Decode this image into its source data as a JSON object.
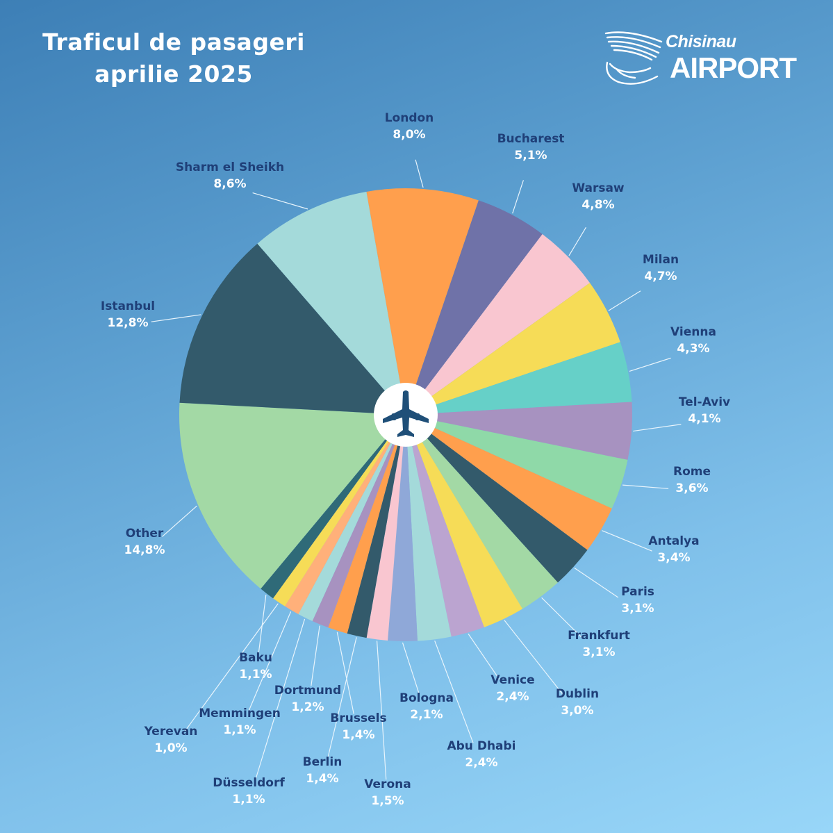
{
  "header": {
    "title_line1": "Traficul de pasageri",
    "title_line2": "aprilie 2025"
  },
  "logo": {
    "city": "Chisinau",
    "brand": "AIRPORT"
  },
  "center_icon": "airplane-icon",
  "chart_data": {
    "type": "pie",
    "title": "Traficul de pasageri aprilie 2025",
    "start_angle_deg": -10,
    "direction": "clockwise",
    "slices": [
      {
        "name": "London",
        "value": 8.0,
        "label": "8,0%",
        "color": "#ff9f4d"
      },
      {
        "name": "Bucharest",
        "value": 5.1,
        "label": "5,1%",
        "color": "#6f72a8"
      },
      {
        "name": "Warsaw",
        "value": 4.8,
        "label": "4,8%",
        "color": "#f9c6d0"
      },
      {
        "name": "Milan",
        "value": 4.7,
        "label": "4,7%",
        "color": "#f6dc57"
      },
      {
        "name": "Vienna",
        "value": 4.3,
        "label": "4,3%",
        "color": "#66d0c8"
      },
      {
        "name": "Tel-Aviv",
        "value": 4.1,
        "label": "4,1%",
        "color": "#a792c0"
      },
      {
        "name": "Rome",
        "value": 3.6,
        "label": "3,6%",
        "color": "#8fd9a8"
      },
      {
        "name": "Antalya",
        "value": 3.4,
        "label": "3,4%",
        "color": "#ff9f4d"
      },
      {
        "name": "Paris",
        "value": 3.1,
        "label": "3,1%",
        "color": "#335a6b"
      },
      {
        "name": "Frankfurt",
        "value": 3.1,
        "label": "3,1%",
        "color": "#a3d9a5"
      },
      {
        "name": "Dublin",
        "value": 3.0,
        "label": "3,0%",
        "color": "#f6dc57"
      },
      {
        "name": "Venice",
        "value": 2.4,
        "label": "2,4%",
        "color": "#bba4d0"
      },
      {
        "name": "Abu Dhabi",
        "value": 2.4,
        "label": "2,4%",
        "color": "#a4dada"
      },
      {
        "name": "Bologna",
        "value": 2.1,
        "label": "2,1%",
        "color": "#8fa8d8"
      },
      {
        "name": "Verona",
        "value": 1.5,
        "label": "1,5%",
        "color": "#f9c6d0"
      },
      {
        "name": "Berlin",
        "value": 1.4,
        "label": "1,4%",
        "color": "#335a6b"
      },
      {
        "name": "Brussels",
        "value": 1.4,
        "label": "1,4%",
        "color": "#ff9f4d"
      },
      {
        "name": "Dortmund",
        "value": 1.2,
        "label": "1,2%",
        "color": "#a792c0"
      },
      {
        "name": "Düsseldorf",
        "value": 1.1,
        "label": "1,1%",
        "color": "#a4dada"
      },
      {
        "name": "Memmingen",
        "value": 1.1,
        "label": "1,1%",
        "color": "#ffb07a"
      },
      {
        "name": "Yerevan",
        "value": 1.0,
        "label": "1,0%",
        "color": "#f6dc57"
      },
      {
        "name": "Baku",
        "value": 1.1,
        "label": "1,1%",
        "color": "#2f6a78"
      },
      {
        "name": "Other",
        "value": 14.8,
        "label": "14,8%",
        "color": "#a3d9a5"
      },
      {
        "name": "Istanbul",
        "value": 12.8,
        "label": "12,8%",
        "color": "#335a6b"
      },
      {
        "name": "Sharm el Sheikh",
        "value": 8.6,
        "label": "8,6%",
        "color": "#a4dada"
      }
    ]
  }
}
